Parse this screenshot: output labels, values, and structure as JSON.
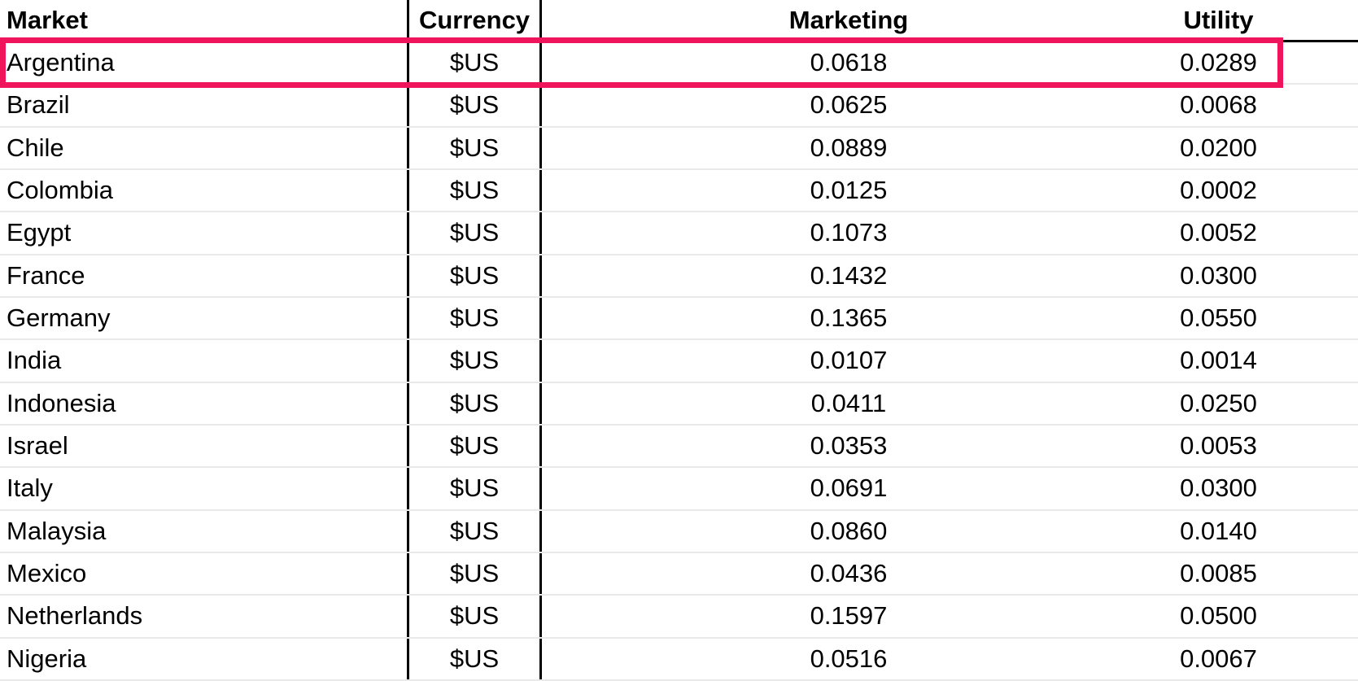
{
  "table": {
    "columns": [
      {
        "key": "market",
        "label": "Market"
      },
      {
        "key": "currency",
        "label": "Currency"
      },
      {
        "key": "marketing",
        "label": "Marketing"
      },
      {
        "key": "utility",
        "label": "Utility"
      }
    ],
    "rows": [
      {
        "market": "Argentina",
        "currency": "$US",
        "marketing": "0.0618",
        "utility": "0.0289",
        "highlighted": true
      },
      {
        "market": "Brazil",
        "currency": "$US",
        "marketing": "0.0625",
        "utility": "0.0068",
        "highlighted": false
      },
      {
        "market": "Chile",
        "currency": "$US",
        "marketing": "0.0889",
        "utility": "0.0200",
        "highlighted": false
      },
      {
        "market": "Colombia",
        "currency": "$US",
        "marketing": "0.0125",
        "utility": "0.0002",
        "highlighted": false
      },
      {
        "market": "Egypt",
        "currency": "$US",
        "marketing": "0.1073",
        "utility": "0.0052",
        "highlighted": false
      },
      {
        "market": "France",
        "currency": "$US",
        "marketing": "0.1432",
        "utility": "0.0300",
        "highlighted": false
      },
      {
        "market": "Germany",
        "currency": "$US",
        "marketing": "0.1365",
        "utility": "0.0550",
        "highlighted": false
      },
      {
        "market": "India",
        "currency": "$US",
        "marketing": "0.0107",
        "utility": "0.0014",
        "highlighted": false
      },
      {
        "market": "Indonesia",
        "currency": "$US",
        "marketing": "0.0411",
        "utility": "0.0250",
        "highlighted": false
      },
      {
        "market": "Israel",
        "currency": "$US",
        "marketing": "0.0353",
        "utility": "0.0053",
        "highlighted": false
      },
      {
        "market": "Italy",
        "currency": "$US",
        "marketing": "0.0691",
        "utility": "0.0300",
        "highlighted": false
      },
      {
        "market": "Malaysia",
        "currency": "$US",
        "marketing": "0.0860",
        "utility": "0.0140",
        "highlighted": false
      },
      {
        "market": "Mexico",
        "currency": "$US",
        "marketing": "0.0436",
        "utility": "0.0085",
        "highlighted": false
      },
      {
        "market": "Netherlands",
        "currency": "$US",
        "marketing": "0.1597",
        "utility": "0.0500",
        "highlighted": false
      },
      {
        "market": "Nigeria",
        "currency": "$US",
        "marketing": "0.0516",
        "utility": "0.0067",
        "highlighted": false
      }
    ]
  },
  "highlight": {
    "row": "Argentina",
    "color": "#f0145c"
  },
  "colors": {
    "accent_highlight": "#f0145c",
    "border_black": "#000000",
    "gridline_gray": "#e9e9e9",
    "background": "#ffffff",
    "text": "#000000"
  }
}
